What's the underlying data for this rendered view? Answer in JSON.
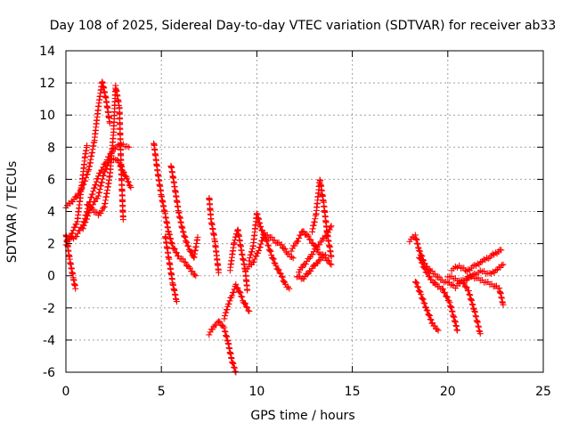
{
  "chart_data": {
    "type": "scatter",
    "title": "Day 108 of 2025, Sidereal Day-to-day VTEC variation (SDTVAR) for receiver ab33",
    "xlabel": "GPS time / hours",
    "ylabel": "SDTVAR / TECUs",
    "xlim": [
      0,
      25
    ],
    "ylim": [
      -6,
      14
    ],
    "xticks": [
      0,
      5,
      10,
      15,
      20,
      25
    ],
    "yticks": [
      -6,
      -4,
      -2,
      0,
      2,
      4,
      6,
      8,
      10,
      12,
      14
    ],
    "grid": true,
    "marker": "+",
    "color": "#ff0000",
    "tracks": [
      {
        "name": "track-1",
        "points": [
          [
            0.0,
            4.3
          ],
          [
            0.3,
            4.6
          ],
          [
            0.6,
            5.0
          ],
          [
            0.9,
            5.6
          ],
          [
            1.2,
            6.6
          ],
          [
            1.5,
            8.5
          ],
          [
            1.7,
            10.5
          ],
          [
            1.9,
            12.1
          ],
          [
            2.1,
            11.0
          ],
          [
            2.3,
            9.5
          ]
        ]
      },
      {
        "name": "track-2",
        "points": [
          [
            0.0,
            2.0
          ],
          [
            0.3,
            2.6
          ],
          [
            0.6,
            3.4
          ],
          [
            0.8,
            5.3
          ],
          [
            1.0,
            7.4
          ],
          [
            1.1,
            8.1
          ]
        ]
      },
      {
        "name": "track-3",
        "points": [
          [
            0.0,
            2.6
          ],
          [
            0.2,
            1.0
          ],
          [
            0.4,
            -0.2
          ],
          [
            0.5,
            -0.8
          ]
        ]
      },
      {
        "name": "track-4",
        "points": [
          [
            0.1,
            2.2
          ],
          [
            0.5,
            2.4
          ],
          [
            0.9,
            3.2
          ],
          [
            1.3,
            4.8
          ],
          [
            1.7,
            6.2
          ],
          [
            2.1,
            7.1
          ],
          [
            2.5,
            7.9
          ],
          [
            2.9,
            8.2
          ],
          [
            3.3,
            8.0
          ]
        ]
      },
      {
        "name": "track-5",
        "points": [
          [
            0.9,
            3.0
          ],
          [
            1.3,
            4.2
          ],
          [
            1.7,
            5.0
          ],
          [
            2.0,
            6.4
          ],
          [
            2.3,
            7.2
          ],
          [
            2.6,
            7.3
          ],
          [
            2.8,
            7.0
          ],
          [
            3.0,
            6.5
          ],
          [
            3.2,
            6.0
          ],
          [
            3.4,
            5.5
          ]
        ]
      },
      {
        "name": "track-6",
        "points": [
          [
            1.1,
            4.5
          ],
          [
            1.4,
            4.1
          ],
          [
            1.7,
            3.8
          ],
          [
            2.0,
            4.2
          ],
          [
            2.3,
            6.2
          ],
          [
            2.5,
            9.0
          ],
          [
            2.6,
            11.8
          ],
          [
            2.8,
            10.5
          ],
          [
            2.9,
            6.5
          ],
          [
            3.0,
            3.5
          ]
        ]
      },
      {
        "name": "track-7",
        "points": [
          [
            4.6,
            8.3
          ],
          [
            4.8,
            6.5
          ],
          [
            5.0,
            5.0
          ],
          [
            5.2,
            3.8
          ],
          [
            5.4,
            2.6
          ],
          [
            5.6,
            1.8
          ],
          [
            5.9,
            1.2
          ],
          [
            6.2,
            0.9
          ],
          [
            6.5,
            0.4
          ],
          [
            6.8,
            0.0
          ]
        ]
      },
      {
        "name": "track-8",
        "points": [
          [
            5.2,
            2.5
          ],
          [
            5.4,
            1.0
          ],
          [
            5.6,
            -0.5
          ],
          [
            5.8,
            -1.6
          ]
        ]
      },
      {
        "name": "track-9",
        "points": [
          [
            5.5,
            6.9
          ],
          [
            5.7,
            5.5
          ],
          [
            5.9,
            4.0
          ],
          [
            6.1,
            2.9
          ],
          [
            6.3,
            2.1
          ],
          [
            6.5,
            1.6
          ],
          [
            6.7,
            1.1
          ],
          [
            6.9,
            2.4
          ]
        ]
      },
      {
        "name": "track-10",
        "points": [
          [
            7.5,
            4.9
          ],
          [
            7.6,
            3.5
          ],
          [
            7.8,
            2.2
          ],
          [
            7.9,
            1.2
          ],
          [
            8.0,
            0.2
          ]
        ]
      },
      {
        "name": "track-11",
        "points": [
          [
            7.5,
            -3.6
          ],
          [
            7.8,
            -3.1
          ],
          [
            8.0,
            -2.8
          ],
          [
            8.3,
            -3.3
          ],
          [
            8.5,
            -4.2
          ],
          [
            8.7,
            -5.3
          ],
          [
            8.9,
            -6.0
          ]
        ]
      },
      {
        "name": "track-12",
        "points": [
          [
            8.3,
            -2.6
          ],
          [
            8.5,
            -1.8
          ],
          [
            8.7,
            -1.2
          ],
          [
            8.9,
            -0.6
          ],
          [
            9.1,
            -1.0
          ],
          [
            9.3,
            -1.6
          ],
          [
            9.6,
            -2.2
          ]
        ]
      },
      {
        "name": "track-13",
        "points": [
          [
            8.6,
            0.4
          ],
          [
            8.8,
            2.0
          ],
          [
            9.0,
            2.9
          ],
          [
            9.2,
            1.5
          ],
          [
            9.4,
            0.3
          ],
          [
            9.5,
            -0.9
          ]
        ]
      },
      {
        "name": "track-14",
        "points": [
          [
            9.6,
            1.0
          ],
          [
            9.8,
            1.8
          ],
          [
            10.0,
            3.9
          ],
          [
            10.2,
            3.0
          ],
          [
            10.5,
            2.2
          ],
          [
            10.8,
            1.2
          ],
          [
            11.0,
            0.6
          ],
          [
            11.3,
            0.0
          ],
          [
            11.5,
            -0.6
          ],
          [
            11.7,
            -0.8
          ]
        ]
      },
      {
        "name": "track-15",
        "points": [
          [
            9.5,
            0.5
          ],
          [
            9.8,
            0.8
          ],
          [
            10.1,
            1.6
          ],
          [
            10.4,
            2.6
          ],
          [
            10.7,
            2.4
          ],
          [
            11.0,
            2.1
          ],
          [
            11.3,
            1.9
          ],
          [
            11.6,
            1.4
          ],
          [
            11.9,
            1.1
          ]
        ]
      },
      {
        "name": "track-16",
        "points": [
          [
            11.8,
            1.6
          ],
          [
            12.1,
            2.1
          ],
          [
            12.4,
            2.8
          ],
          [
            12.7,
            2.4
          ],
          [
            13.0,
            1.9
          ],
          [
            13.3,
            1.4
          ],
          [
            13.6,
            1.1
          ],
          [
            13.9,
            0.7
          ]
        ]
      },
      {
        "name": "track-17",
        "points": [
          [
            12.2,
            0.3
          ],
          [
            12.5,
            0.7
          ],
          [
            12.8,
            1.2
          ],
          [
            13.1,
            1.7
          ],
          [
            13.4,
            2.2
          ],
          [
            13.7,
            2.6
          ],
          [
            13.9,
            3.1
          ]
        ]
      },
      {
        "name": "track-18",
        "points": [
          [
            12.9,
            2.8
          ],
          [
            13.1,
            3.8
          ],
          [
            13.3,
            6.0
          ],
          [
            13.5,
            4.5
          ],
          [
            13.7,
            2.5
          ],
          [
            13.9,
            1.2
          ]
        ]
      },
      {
        "name": "track-19",
        "points": [
          [
            12.1,
            0.0
          ],
          [
            12.4,
            -0.2
          ],
          [
            12.7,
            0.2
          ],
          [
            13.0,
            0.6
          ],
          [
            13.3,
            1.0
          ],
          [
            13.6,
            1.3
          ]
        ]
      },
      {
        "name": "track-20",
        "points": [
          [
            18.0,
            2.2
          ],
          [
            18.3,
            2.5
          ],
          [
            18.5,
            1.6
          ],
          [
            18.8,
            0.7
          ],
          [
            19.1,
            0.3
          ],
          [
            19.4,
            0.0
          ],
          [
            19.7,
            -0.3
          ],
          [
            20.0,
            -0.4
          ],
          [
            20.3,
            -0.6
          ]
        ]
      },
      {
        "name": "track-21",
        "points": [
          [
            18.3,
            -0.3
          ],
          [
            18.6,
            -1.2
          ],
          [
            18.9,
            -2.1
          ],
          [
            19.2,
            -3.0
          ],
          [
            19.5,
            -3.4
          ]
        ]
      },
      {
        "name": "track-22",
        "points": [
          [
            18.5,
            1.2
          ],
          [
            18.8,
            0.4
          ],
          [
            19.1,
            -0.2
          ],
          [
            19.4,
            -0.6
          ],
          [
            19.7,
            -0.8
          ],
          [
            19.9,
            -1.2
          ],
          [
            20.1,
            -1.7
          ],
          [
            20.3,
            -2.5
          ],
          [
            20.5,
            -3.4
          ]
        ]
      },
      {
        "name": "track-23",
        "points": [
          [
            20.0,
            0.0
          ],
          [
            20.4,
            -0.2
          ],
          [
            20.8,
            -0.4
          ],
          [
            21.1,
            -1.0
          ],
          [
            21.4,
            -2.2
          ],
          [
            21.7,
            -3.6
          ]
        ]
      },
      {
        "name": "track-24",
        "points": [
          [
            20.2,
            0.4
          ],
          [
            20.6,
            0.6
          ],
          [
            21.0,
            0.3
          ],
          [
            21.4,
            0.6
          ],
          [
            21.8,
            0.9
          ],
          [
            22.2,
            1.2
          ],
          [
            22.5,
            1.4
          ],
          [
            22.8,
            1.6
          ]
        ]
      },
      {
        "name": "track-25",
        "points": [
          [
            20.4,
            -0.7
          ],
          [
            20.8,
            -0.3
          ],
          [
            21.2,
            0.0
          ],
          [
            21.6,
            -0.2
          ],
          [
            22.0,
            -0.4
          ],
          [
            22.4,
            -0.6
          ],
          [
            22.7,
            -0.8
          ],
          [
            22.9,
            -1.8
          ]
        ]
      },
      {
        "name": "track-26",
        "points": [
          [
            21.0,
            -0.2
          ],
          [
            21.4,
            0.1
          ],
          [
            21.8,
            0.3
          ],
          [
            22.2,
            0.1
          ],
          [
            22.6,
            0.4
          ],
          [
            22.9,
            0.7
          ]
        ]
      }
    ]
  }
}
